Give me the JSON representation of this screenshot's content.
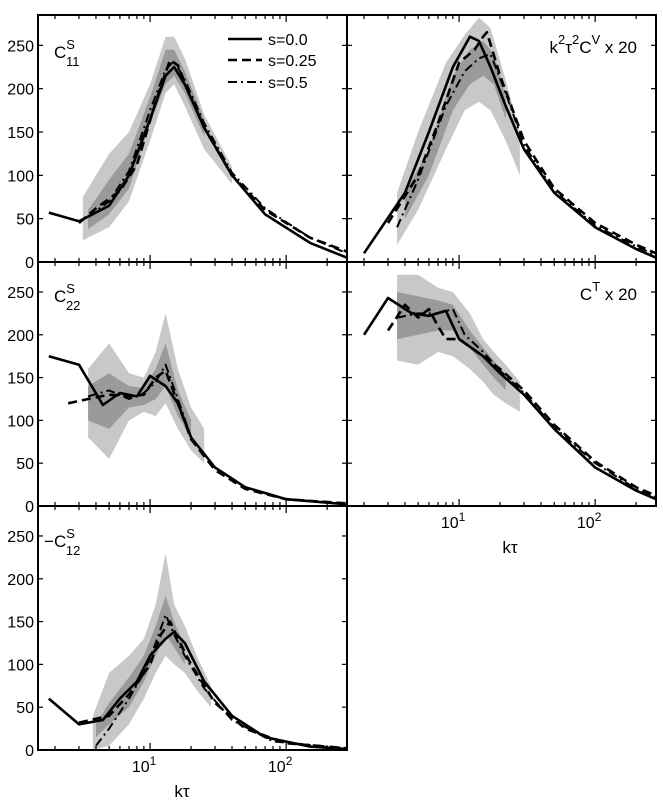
{
  "figure": {
    "xlabel": "kτ",
    "x_tick_labels": [
      {
        "value": 10,
        "base": "10",
        "exp": "1"
      },
      {
        "value": 100,
        "base": "10",
        "exp": "2"
      }
    ],
    "y_tick_labels": [
      "0",
      "50",
      "100",
      "150",
      "200",
      "250"
    ],
    "legend": [
      {
        "label": "s=0.0",
        "style": "solid"
      },
      {
        "label": "s=0.25",
        "style": "dashed"
      },
      {
        "label": "s=0.5",
        "style": "dashdot"
      }
    ]
  },
  "chart_data": [
    {
      "type": "line",
      "panel": "C11S",
      "title": "Cˢ₁₁",
      "title_main": "C",
      "title_sup": "S",
      "title_sub": "11",
      "xscale": "log",
      "xlim": [
        1.5,
        280
      ],
      "ylim": [
        0,
        285
      ],
      "show_xticks": false,
      "series": [
        {
          "name": "s=0.0",
          "style": "solid",
          "x": [
            1.8,
            3.0,
            5.0,
            7.0,
            10.0,
            13.0,
            15.0,
            18.0,
            25.0,
            40.0,
            70.0,
            150.0,
            280.0
          ],
          "y": [
            57,
            47,
            65,
            100,
            165,
            215,
            225,
            205,
            155,
            100,
            55,
            22,
            5
          ]
        },
        {
          "name": "s=0.25",
          "style": "dashed",
          "x": [
            3.0,
            4.0,
            6.0,
            8.0,
            11.0,
            14.0,
            16.0,
            19.0,
            25.0,
            40.0,
            70.0,
            150.0,
            280.0
          ],
          "y": [
            45,
            62,
            82,
            112,
            185,
            233,
            227,
            198,
            155,
            100,
            60,
            28,
            12
          ]
        },
        {
          "name": "s=0.5",
          "style": "dashdot",
          "x": [
            3.5,
            5.0,
            7.0,
            10.0,
            13.0,
            15.0,
            18.0,
            25.0,
            40.0,
            70.0,
            150.0,
            280.0
          ],
          "y": [
            52,
            70,
            105,
            175,
            222,
            232,
            210,
            160,
            103,
            62,
            28,
            10
          ]
        }
      ],
      "bands": [
        {
          "shade": "light",
          "x": [
            3.2,
            5.0,
            7.0,
            10.0,
            13.0,
            15.0,
            18.0,
            25.0,
            40.0
          ],
          "lower": [
            25,
            40,
            70,
            140,
            195,
            205,
            180,
            130,
            90
          ],
          "upper": [
            75,
            125,
            150,
            205,
            260,
            260,
            235,
            170,
            110
          ]
        },
        {
          "shade": "dark",
          "x": [
            3.5,
            5.0,
            7.0,
            10.0,
            13.0,
            15.0,
            18.0,
            25.0
          ],
          "lower": [
            38,
            55,
            85,
            160,
            205,
            215,
            195,
            145
          ],
          "upper": [
            60,
            95,
            125,
            190,
            245,
            245,
            220,
            165
          ]
        }
      ]
    },
    {
      "type": "line",
      "panel": "CV",
      "title": "k²τ²Cᵛ x 20",
      "title_main": "k",
      "title_sup": "2",
      "title_main2": "τ",
      "title_sup2": "2",
      "title_main3": "C",
      "title_sup3": "V",
      "title_suffix": " x 20",
      "xscale": "log",
      "xlim": [
        1.5,
        280
      ],
      "ylim": [
        0,
        285
      ],
      "show_xticks": false,
      "series": [
        {
          "name": "s=0.0",
          "style": "solid",
          "x": [
            2.0,
            4.0,
            6.0,
            9.0,
            12.0,
            14.0,
            17.0,
            22.0,
            30.0,
            50.0,
            100.0,
            200.0,
            280.0
          ],
          "y": [
            10,
            80,
            150,
            225,
            260,
            255,
            225,
            180,
            130,
            80,
            40,
            15,
            5
          ]
        },
        {
          "name": "s=0.25",
          "style": "dashed",
          "x": [
            3.0,
            5.0,
            7.0,
            10.0,
            13.0,
            15.0,
            16.0,
            20.0,
            30.0,
            50.0,
            100.0,
            200.0,
            280.0
          ],
          "y": [
            45,
            100,
            160,
            230,
            245,
            260,
            265,
            215,
            140,
            85,
            45,
            20,
            10
          ]
        },
        {
          "name": "s=0.5",
          "style": "dashdot",
          "x": [
            3.5,
            5.0,
            8.0,
            11.0,
            14.0,
            17.0,
            22.0,
            30.0,
            50.0,
            100.0,
            200.0,
            280.0
          ],
          "y": [
            40,
            95,
            180,
            220,
            235,
            240,
            195,
            135,
            82,
            42,
            18,
            8
          ]
        }
      ],
      "bands": [
        {
          "shade": "light",
          "x": [
            3.5,
            5.0,
            8.0,
            11.0,
            14.0,
            17.0,
            22.0,
            28.0
          ],
          "lower": [
            20,
            60,
            130,
            175,
            185,
            175,
            140,
            100
          ],
          "upper": [
            80,
            150,
            230,
            262,
            282,
            270,
            210,
            150
          ]
        },
        {
          "shade": "dark",
          "x": [
            4.0,
            6.0,
            9.0,
            12.0,
            15.0,
            18.0,
            22.0
          ],
          "lower": [
            50,
            100,
            175,
            205,
            215,
            205,
            165
          ],
          "upper": [
            80,
            130,
            215,
            245,
            255,
            240,
            190
          ]
        }
      ]
    },
    {
      "type": "line",
      "panel": "C22S",
      "title": "Cˢ₂₂",
      "title_main": "C",
      "title_sup": "S",
      "title_sub": "22",
      "xscale": "log",
      "xlim": [
        1.5,
        280
      ],
      "ylim": [
        0,
        285
      ],
      "show_xticks": false,
      "series": [
        {
          "name": "s=0.0",
          "style": "solid",
          "x": [
            1.8,
            3.0,
            4.5,
            6.0,
            8.0,
            10.0,
            13.0,
            16.0,
            20.0,
            30.0,
            50.0,
            100.0,
            280.0
          ],
          "y": [
            175,
            165,
            118,
            132,
            128,
            152,
            140,
            120,
            80,
            45,
            22,
            8,
            2
          ]
        },
        {
          "name": "s=0.25",
          "style": "dashed",
          "x": [
            2.5,
            3.5,
            5.0,
            7.0,
            9.0,
            11.0,
            13.0,
            16.0,
            20.0,
            30.0,
            50.0,
            100.0,
            280.0
          ],
          "y": [
            120,
            125,
            130,
            128,
            130,
            150,
            158,
            120,
            78,
            42,
            20,
            8,
            3
          ]
        },
        {
          "name": "s=0.5",
          "style": "dashdot",
          "x": [
            3.5,
            5.0,
            7.0,
            9.0,
            11.0,
            13.0,
            16.0,
            20.0,
            30.0,
            50.0,
            100.0,
            280.0
          ],
          "y": [
            128,
            135,
            125,
            132,
            145,
            165,
            125,
            80,
            45,
            22,
            8,
            2
          ]
        }
      ],
      "bands": [
        {
          "shade": "light",
          "x": [
            3.5,
            5.0,
            7.0,
            9.0,
            11.0,
            13.0,
            16.0,
            20.0,
            25.0
          ],
          "lower": [
            80,
            55,
            100,
            110,
            105,
            120,
            90,
            65,
            50
          ],
          "upper": [
            160,
            190,
            155,
            150,
            180,
            225,
            160,
            115,
            90
          ]
        },
        {
          "shade": "dark",
          "x": [
            3.5,
            5.0,
            7.0,
            9.0,
            11.0,
            13.0,
            16.0,
            20.0
          ],
          "lower": [
            100,
            90,
            115,
            118,
            125,
            140,
            105,
            80
          ],
          "upper": [
            140,
            155,
            140,
            138,
            160,
            190,
            135,
            100
          ]
        }
      ]
    },
    {
      "type": "line",
      "panel": "CT",
      "title": "Cᵀ x 20",
      "title_main": "C",
      "title_sup": "T",
      "title_suffix": " x 20",
      "xscale": "log",
      "xlim": [
        1.5,
        280
      ],
      "ylim": [
        0,
        285
      ],
      "show_xticks": true,
      "series": [
        {
          "name": "s=0.0",
          "style": "solid",
          "x": [
            2.0,
            3.0,
            4.5,
            6.0,
            8.0,
            10.0,
            15.0,
            20.0,
            30.0,
            50.0,
            100.0,
            200.0,
            280.0
          ],
          "y": [
            200,
            243,
            225,
            222,
            228,
            195,
            175,
            155,
            130,
            90,
            45,
            18,
            8
          ]
        },
        {
          "name": "s=0.25",
          "style": "dashed",
          "x": [
            3.0,
            4.0,
            5.0,
            6.0,
            7.0,
            8.0,
            10.0,
            15.0,
            20.0,
            30.0,
            50.0,
            100.0,
            200.0,
            280.0
          ],
          "y": [
            205,
            235,
            220,
            230,
            210,
            195,
            195,
            175,
            160,
            135,
            95,
            52,
            22,
            12
          ]
        },
        {
          "name": "s=0.5",
          "style": "dashdot",
          "x": [
            3.5,
            5.0,
            7.0,
            9.0,
            11.0,
            15.0,
            20.0,
            30.0,
            50.0,
            100.0,
            200.0,
            280.0
          ],
          "y": [
            220,
            225,
            225,
            230,
            200,
            180,
            158,
            132,
            92,
            50,
            20,
            10
          ]
        }
      ],
      "bands": [
        {
          "shade": "light",
          "x": [
            3.5,
            5.0,
            7.0,
            9.0,
            12.0,
            15.0,
            18.0,
            22.0,
            28.0
          ],
          "lower": [
            170,
            165,
            180,
            175,
            160,
            145,
            130,
            120,
            110
          ],
          "upper": [
            270,
            270,
            255,
            250,
            225,
            195,
            180,
            165,
            145
          ]
        },
        {
          "shade": "dark",
          "x": [
            3.5,
            5.0,
            7.0,
            9.0,
            12.0,
            15.0,
            18.0,
            22.0
          ],
          "lower": [
            195,
            200,
            205,
            205,
            185,
            165,
            150,
            135
          ],
          "upper": [
            250,
            245,
            240,
            235,
            205,
            185,
            170,
            150
          ]
        }
      ]
    },
    {
      "type": "line",
      "panel": "C12S",
      "title": "−Cˢ₁₂",
      "title_prefix": "−",
      "title_main": "C",
      "title_sup": "S",
      "title_sub": "12",
      "xscale": "log",
      "xlim": [
        1.5,
        280
      ],
      "ylim": [
        0,
        285
      ],
      "show_xticks": true,
      "series": [
        {
          "name": "s=0.0",
          "style": "solid",
          "x": [
            1.8,
            3.0,
            4.5,
            6.0,
            8.0,
            10.0,
            13.0,
            15.0,
            18.0,
            25.0,
            40.0,
            70.0,
            150.0,
            280.0
          ],
          "y": [
            60,
            30,
            35,
            60,
            80,
            110,
            130,
            138,
            125,
            80,
            40,
            15,
            4,
            1
          ]
        },
        {
          "name": "s=0.25",
          "style": "dashed",
          "x": [
            3.0,
            5.0,
            7.0,
            10.0,
            12.0,
            14.0,
            16.0,
            20.0,
            30.0,
            50.0,
            100.0,
            280.0
          ],
          "y": [
            32,
            40,
            65,
            100,
            135,
            150,
            130,
            100,
            55,
            25,
            8,
            2
          ]
        },
        {
          "name": "s=0.5",
          "style": "dashdot",
          "x": [
            4.0,
            5.0,
            7.0,
            9.0,
            11.0,
            13.0,
            15.0,
            18.0,
            25.0,
            40.0,
            80.0,
            280.0
          ],
          "y": [
            5,
            25,
            60,
            90,
            125,
            158,
            135,
            110,
            72,
            35,
            10,
            2
          ]
        }
      ],
      "bands": [
        {
          "shade": "light",
          "x": [
            3.8,
            5.0,
            7.0,
            9.0,
            11.0,
            13.0,
            15.0,
            18.0,
            22.0,
            28.0
          ],
          "lower": [
            0,
            5,
            30,
            60,
            90,
            110,
            100,
            90,
            70,
            50
          ],
          "upper": [
            40,
            90,
            110,
            130,
            170,
            230,
            170,
            145,
            110,
            75
          ]
        },
        {
          "shade": "dark",
          "x": [
            4.0,
            5.0,
            7.0,
            9.0,
            11.0,
            13.0,
            15.0,
            18.0
          ],
          "lower": [
            15,
            30,
            50,
            80,
            110,
            135,
            120,
            100
          ],
          "upper": [
            30,
            55,
            85,
            110,
            145,
            180,
            150,
            120
          ]
        }
      ]
    }
  ]
}
